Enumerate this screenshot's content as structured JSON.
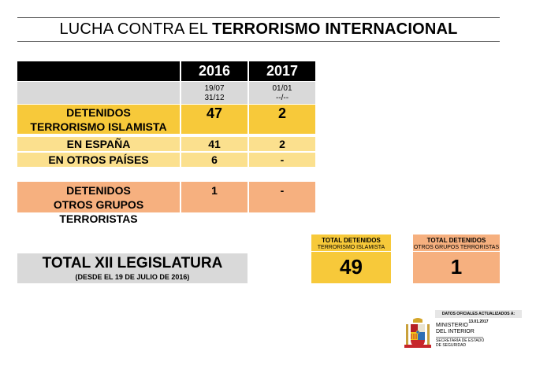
{
  "title": {
    "prefix": "LUCHA CONTRA EL",
    "bold": "TERRORISMO INTERNACIONAL"
  },
  "table": {
    "years": [
      "2016",
      "2017"
    ],
    "dates": [
      {
        "line1": "19/07",
        "line2": "31/12"
      },
      {
        "line1": "01/01",
        "line2": "--/--"
      }
    ],
    "rows": {
      "islamista": {
        "label1": "DETENIDOS",
        "label2": "TERRORISMO ISLAMISTA",
        "v2016": "47",
        "v2017": "2"
      },
      "espana": {
        "label": "EN ESPAÑA",
        "v2016": "41",
        "v2017": "2"
      },
      "otros_paises": {
        "label": "EN OTROS PAÍSES",
        "v2016": "6",
        "v2017": "-"
      },
      "otros_grupos": {
        "label1": "DETENIDOS",
        "label2": "OTROS GRUPOS TERRORISTAS",
        "v2016": "1",
        "v2017": "-"
      }
    }
  },
  "legislatura": {
    "title": "TOTAL XII LEGISLATURA",
    "subtitle": "(DESDE EL 19 DE JULIO DE 2016)"
  },
  "totals": {
    "islamista": {
      "label1": "TOTAL DETENIDOS",
      "label2": "TERRORISMO ISLAMISTA",
      "value": "49"
    },
    "otros": {
      "label1": "TOTAL DETENIDOS",
      "label2": "OTROS GRUPOS TERRORISTAS",
      "value": "1"
    }
  },
  "footer": {
    "update_note": "DATOS OFICIALES ACTUALIZADOS A: 13.01.2017",
    "ministry_line1": "MINISTERIO",
    "ministry_line2": "DEL INTERIOR",
    "secretaria_line1": "SECRETARÍA DE ESTADO",
    "secretaria_line2": "DE SEGURIDAD"
  },
  "colors": {
    "header": "#000000",
    "gold": "#f7c93a",
    "light_gold": "#fbe08e",
    "orange": "#f6b07f",
    "grey": "#d9d9d9"
  }
}
